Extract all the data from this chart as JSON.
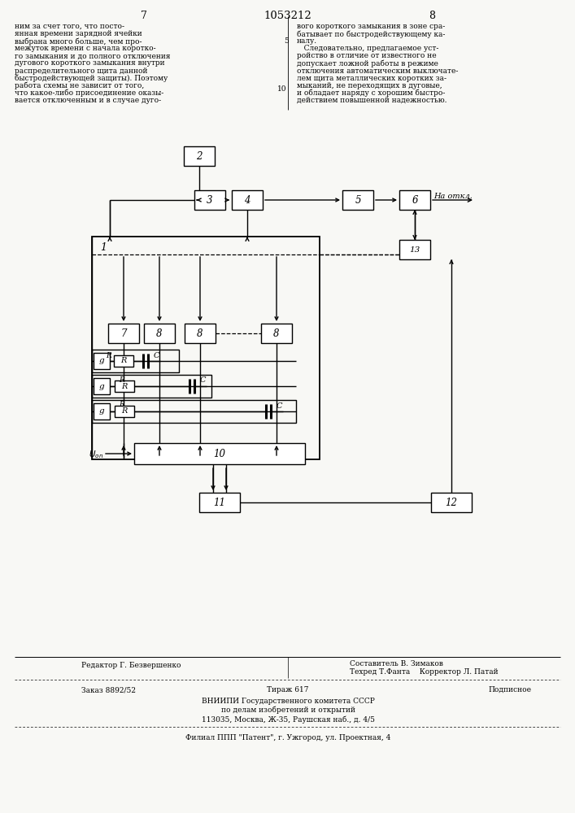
{
  "page_number_left": "7",
  "page_number_center": "1053212",
  "page_number_right": "8",
  "text_left": [
    "ним за счет того, что посто-",
    "янная времени зарядной ячейки",
    "выбрана много больше, чем про-",
    "межуток времени с начала коротко-",
    "го замыкания и до полного отключения",
    "дугового короткого замыкания внутри",
    "распределительного щита данной",
    "быстродействующей защиты). Поэтому",
    "работа схемы не зависит от того,",
    "что какое-либо присоединение оказы-",
    "вается отключенным и в случае дуго-"
  ],
  "text_right": [
    "вого короткого замыкания в зоне сра-",
    "батывает по быстродействующему ка-",
    "налу.",
    "   Следовательно, предлагаемое уст-",
    "ройство в отличие от известного не",
    "допускает ложной работы в режиме",
    "отключения автоматическим выключате-",
    "лем щита металлических коротких за-",
    "мыканий, не переходящих в дуговые,",
    "и обладает наряду с хорошим быстро-",
    "действием повышенной надежностью."
  ],
  "editor_line": "Редактор Г. Безвершенко",
  "composer_line": "Составитель В. Зимаков",
  "techred_line": "Техред Т.Фанта    Корректор Л. Патай",
  "order_line": "Заказ 8892/52",
  "tirazh_line": "Тираж 617",
  "podpisnoe_line": "Подписное",
  "vnipi_line1": "ВНИИПИ Государственного комитета СССР",
  "vnipi_line2": "по делам изобретений и открытий",
  "vnipi_line3": "113035, Москва, Ж-35, Раушская наб., д. 4/5",
  "filial_line": "Филиал ППП \"Патент\", г. Ужгород, ул. Проектная, 4",
  "bg_color": "#f8f8f5"
}
